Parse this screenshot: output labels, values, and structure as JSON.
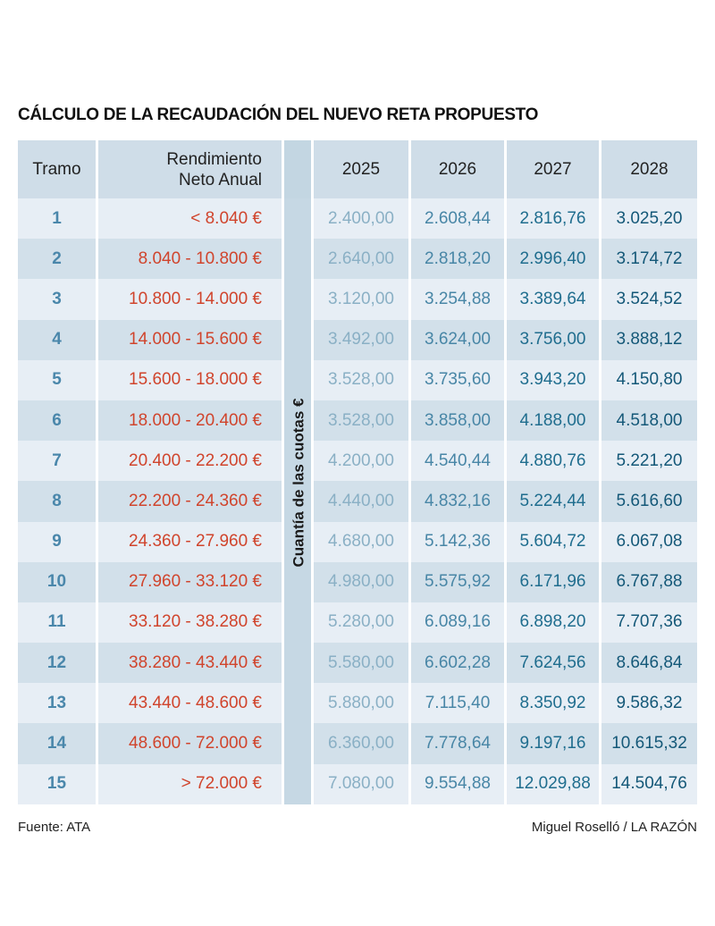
{
  "title": "CÁLCULO DE LA RECAUDACIÓN DEL NUEVO RETA PROPUESTO",
  "headers": {
    "tramo": "Tramo",
    "rendimiento_1": "Rendimiento",
    "rendimiento_2": "Neto Anual",
    "years": [
      "2025",
      "2026",
      "2027",
      "2028"
    ]
  },
  "vertical_label": "Cuantía de las cuotas €",
  "rows": [
    {
      "tramo": "1",
      "range": "< 8.040 €",
      "values": [
        "2.400,00",
        "2.608,44",
        "2.816,76",
        "3.025,20"
      ]
    },
    {
      "tramo": "2",
      "range": "8.040 - 10.800 €",
      "values": [
        "2.640,00",
        "2.818,20",
        "2.996,40",
        "3.174,72"
      ]
    },
    {
      "tramo": "3",
      "range": "10.800 - 14.000 €",
      "values": [
        "3.120,00",
        "3.254,88",
        "3.389,64",
        "3.524,52"
      ]
    },
    {
      "tramo": "4",
      "range": "14.000 - 15.600 €",
      "values": [
        "3.492,00",
        "3.624,00",
        "3.756,00",
        "3.888,12"
      ]
    },
    {
      "tramo": "5",
      "range": "15.600 - 18.000 €",
      "values": [
        "3.528,00",
        "3.735,60",
        "3.943,20",
        "4.150,80"
      ]
    },
    {
      "tramo": "6",
      "range": "18.000 - 20.400 €",
      "values": [
        "3.528,00",
        "3.858,00",
        "4.188,00",
        "4.518,00"
      ]
    },
    {
      "tramo": "7",
      "range": "20.400 - 22.200 €",
      "values": [
        "4.200,00",
        "4.540,44",
        "4.880,76",
        "5.221,20"
      ]
    },
    {
      "tramo": "8",
      "range": "22.200 - 24.360 €",
      "values": [
        "4.440,00",
        "4.832,16",
        "5.224,44",
        "5.616,60"
      ]
    },
    {
      "tramo": "9",
      "range": "24.360 - 27.960 €",
      "values": [
        "4.680,00",
        "5.142,36",
        "5.604,72",
        "6.067,08"
      ]
    },
    {
      "tramo": "10",
      "range": "27.960 - 33.120 €",
      "values": [
        "4.980,00",
        "5.575,92",
        "6.171,96",
        "6.767,88"
      ]
    },
    {
      "tramo": "11",
      "range": "33.120 - 38.280 €",
      "values": [
        "5.280,00",
        "6.089,16",
        "6.898,20",
        "7.707,36"
      ]
    },
    {
      "tramo": "12",
      "range": "38.280 - 43.440 €",
      "values": [
        "5.580,00",
        "6.602,28",
        "7.624,56",
        "8.646,84"
      ]
    },
    {
      "tramo": "13",
      "range": "43.440 - 48.600 €",
      "values": [
        "5.880,00",
        "7.115,40",
        "8.350,92",
        "9.586,32"
      ]
    },
    {
      "tramo": "14",
      "range": "48.600 - 72.000 €",
      "values": [
        "6.360,00",
        "7.778,64",
        "9.197,16",
        "10.615,32"
      ]
    },
    {
      "tramo": "15",
      "range": "> 72.000 €",
      "values": [
        "7.080,00",
        "9.554,88",
        "12.029,88",
        "14.504,76"
      ]
    }
  ],
  "footer": {
    "source": "Fuente: ATA",
    "credit": "Miguel Roselló / LA RAZÓN"
  }
}
